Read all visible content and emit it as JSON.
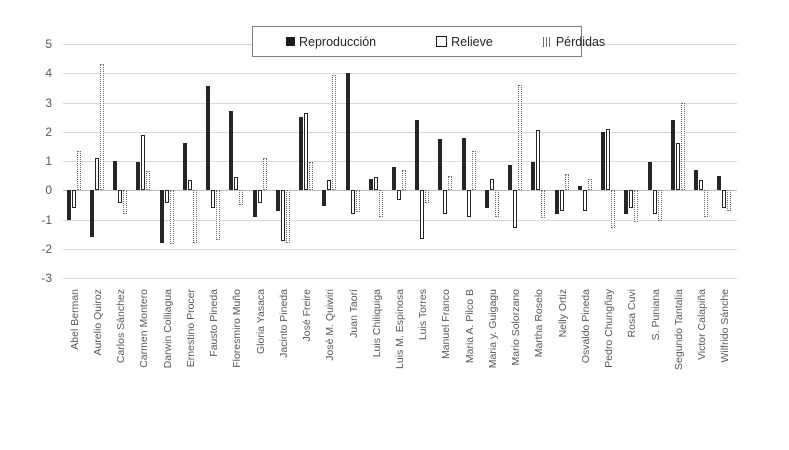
{
  "legend": {
    "items": [
      {
        "label": "Reproducción",
        "key": "solid-black-square"
      },
      {
        "label": "Relieve",
        "key": "white-outline-square"
      },
      {
        "label": "Pérdidas",
        "key": "dotted-hatch-square"
      }
    ]
  },
  "chart_data": {
    "type": "bar",
    "title": "",
    "xlabel": "",
    "ylabel": "",
    "ylim": [
      -3,
      5
    ],
    "yticks": [
      5,
      4,
      3,
      2,
      1,
      0,
      -1,
      -2,
      -3
    ],
    "grid": true,
    "legend_position": "top-center",
    "colors": {
      "bar_black": "#262626",
      "grid": "#d9d9d9",
      "axis_text": "#595959",
      "legend_border": "#7f7f7f"
    },
    "categories": [
      "Abel Berman",
      "Aurelio Quiroz",
      "Carlos Sánchez",
      "Carmen Montero",
      "Darwin Colliagua",
      "Ernestino Procer",
      "Fausto Pineda",
      "Floresmiro Muño",
      "Gloria Yasaca",
      "Jacinto Pineda",
      "José Freire",
      "José M. Quiwiri",
      "Juan Taorí",
      "Luis Chiliquiga",
      "Luis M. Espinosa",
      "Luis Torres",
      "Manuel Franco",
      "Maria A. Pilco B",
      "Maria y. Guigagu",
      "Mario Solorzano",
      "Martha Roselo",
      "Nelly Ortiz",
      "Osvaldo Pineda",
      "Pedro Chungñay",
      "Rosa Cuvi",
      "S. Puniana",
      "Segundo Tantalia",
      "Victor Calapiña",
      "Wilfrido Sánche"
    ],
    "series": [
      {
        "name": "Reproducción",
        "style": "solid",
        "values": [
          -1.0,
          -1.6,
          1.0,
          0.95,
          -1.8,
          1.6,
          3.55,
          2.7,
          -0.9,
          -0.7,
          2.5,
          -0.55,
          4.0,
          0.4,
          0.8,
          2.4,
          1.75,
          1.8,
          -0.6,
          0.85,
          0.95,
          -0.8,
          0.15,
          2.0,
          -0.8,
          0.95,
          2.4,
          0.7,
          0.5
        ]
      },
      {
        "name": "Relieve",
        "style": "outline",
        "values": [
          -0.6,
          1.1,
          -0.45,
          1.9,
          -0.45,
          0.35,
          -0.6,
          0.45,
          -0.45,
          -1.75,
          2.65,
          0.35,
          -0.8,
          0.45,
          -0.35,
          -1.65,
          -0.8,
          -0.9,
          0.4,
          -1.3,
          2.05,
          -0.7,
          -0.7,
          2.1,
          -0.6,
          -0.8,
          1.6,
          0.35,
          -0.6
        ]
      },
      {
        "name": "Pérdidas",
        "style": "dotted",
        "values": [
          1.35,
          4.3,
          -0.8,
          0.65,
          -1.85,
          -1.8,
          -1.7,
          -0.5,
          1.1,
          -1.8,
          0.95,
          3.95,
          -0.75,
          -0.9,
          0.7,
          -0.45,
          0.5,
          1.35,
          -0.9,
          3.6,
          -0.95,
          0.55,
          0.4,
          -1.3,
          -1.1,
          -1.05,
          3.0,
          -0.9,
          -0.7
        ]
      }
    ]
  }
}
